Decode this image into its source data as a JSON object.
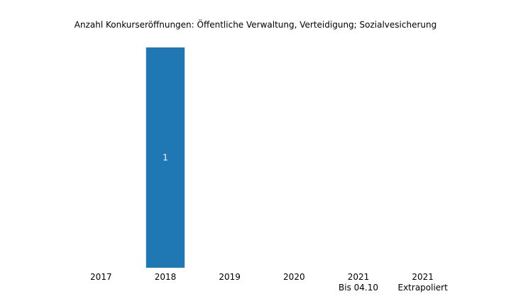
{
  "chart_data": {
    "type": "bar",
    "title": "Anzahl Konkurseröffnungen: Öffentliche Verwaltung, Verteidigung; Sozialvesicherung",
    "categories": [
      [
        "2017"
      ],
      [
        "2018"
      ],
      [
        "2019"
      ],
      [
        "2020"
      ],
      [
        "2021",
        "Bis 04.10"
      ],
      [
        "2021",
        "Extrapoliert"
      ]
    ],
    "values": [
      0,
      1,
      0,
      0,
      0,
      0
    ],
    "data_labels": [
      "",
      "1",
      "",
      "",
      "",
      ""
    ],
    "ylim": [
      0,
      1
    ],
    "grid": false,
    "legend": "none",
    "bar_color": "#1f77b4",
    "label_color": "#ffffff"
  }
}
